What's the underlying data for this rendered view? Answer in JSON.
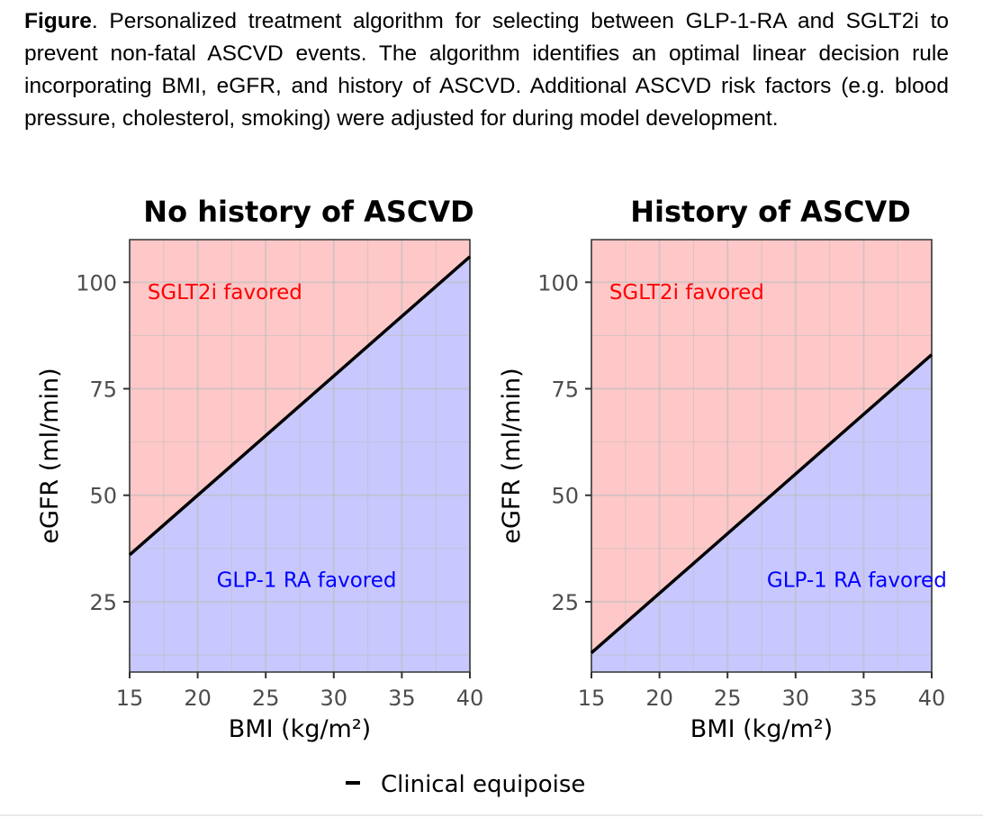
{
  "caption": {
    "bold_prefix": "Figure",
    "text": ". Personalized treatment algorithm for selecting between GLP-1-RA and SGLT2i to prevent non-fatal ASCVD events. The algorithm identifies an optimal linear decision rule incorporating BMI, eGFR, and history of ASCVD. Additional ASCVD risk factors (e.g. blood pressure, cholesterol, smoking) were adjusted for during model development."
  },
  "colors": {
    "above_region": "#ffc8c8",
    "below_region": "#c8c8ff",
    "grid": "#bdbdbd",
    "line": "#000000",
    "sglt2i_label": "#ff0000",
    "glp1_label": "#0000ff"
  },
  "chart_data": [
    {
      "type": "area",
      "title": "No history of ASCVD",
      "xlabel": "BMI (kg/m²)",
      "ylabel": "eGFR (ml/min)",
      "xlim": [
        15,
        40
      ],
      "ylim": [
        8.5,
        110
      ],
      "xticks": [
        15,
        20,
        25,
        30,
        35,
        40
      ],
      "yticks": [
        25,
        50,
        75,
        100
      ],
      "grid": true,
      "series": [
        {
          "name": "Clinical equipoise",
          "x": [
            15,
            40
          ],
          "y": [
            36,
            106
          ]
        }
      ],
      "regions": [
        {
          "label": "SGLT2i favored",
          "side": "above",
          "label_at": [
            22,
            96
          ]
        },
        {
          "label": "GLP-1 RA favored",
          "side": "below",
          "label_at": [
            28,
            28.5
          ]
        }
      ]
    },
    {
      "type": "area",
      "title": "History of ASCVD",
      "xlabel": "BMI (kg/m²)",
      "ylabel": "eGFR (ml/min)",
      "xlim": [
        15,
        40
      ],
      "ylim": [
        8.5,
        110
      ],
      "xticks": [
        15,
        20,
        25,
        30,
        35,
        40
      ],
      "yticks": [
        25,
        50,
        75,
        100
      ],
      "grid": true,
      "series": [
        {
          "name": "Clinical equipoise",
          "x": [
            15,
            40
          ],
          "y": [
            13,
            83
          ]
        }
      ],
      "regions": [
        {
          "label": "SGLT2i favored",
          "side": "above",
          "label_at": [
            22,
            96
          ]
        },
        {
          "label": "GLP-1 RA favored",
          "side": "below",
          "label_at": [
            34.5,
            28.5
          ]
        }
      ]
    }
  ],
  "legend": {
    "label": "Clinical equipoise"
  }
}
